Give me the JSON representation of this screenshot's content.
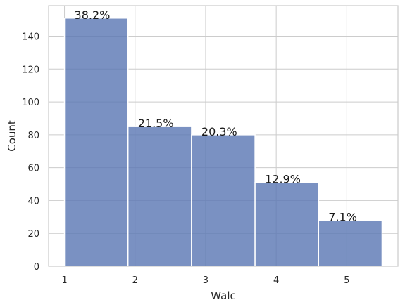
{
  "chart_data": {
    "type": "bar",
    "title": "",
    "xlabel": "Walc",
    "ylabel": "Count",
    "bin_edges": [
      1,
      1.9,
      2.8,
      3.7,
      4.6,
      5.5
    ],
    "values": [
      151,
      85,
      80,
      51,
      28
    ],
    "data_labels": [
      "38.2%",
      "21.5%",
      "20.3%",
      "12.9%",
      "7.1%"
    ],
    "x_ticks": [
      1,
      2,
      3,
      4,
      5
    ],
    "y_ticks": [
      0,
      20,
      40,
      60,
      80,
      100,
      120,
      140
    ],
    "xlim": [
      0.775,
      5.725
    ],
    "ylim": [
      0,
      158.6
    ],
    "grid": true,
    "bar_color": "#5975b3",
    "grid_color": "#cccccc"
  }
}
